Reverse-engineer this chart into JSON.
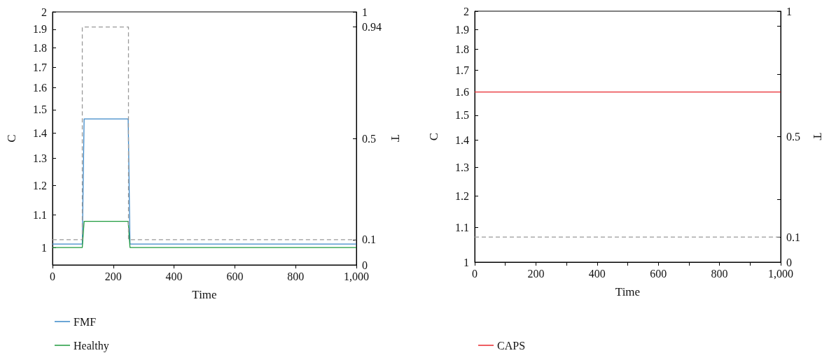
{
  "chart_data": [
    {
      "type": "line",
      "xlabel": "Time",
      "ylabel": "C",
      "y2label": "T",
      "legend": "bottom",
      "marker": "none",
      "grid": false,
      "log": "y",
      "xlim": [
        0,
        1000
      ],
      "xticks": [
        0,
        200,
        400,
        600,
        800,
        {
          "value": 1000,
          "label": "1,000"
        }
      ],
      "ylim": [
        0.95,
        2
      ],
      "yticks": [
        1,
        1.1,
        1.2,
        1.3,
        1.4,
        1.5,
        1.6,
        1.7,
        1.8,
        1.9,
        2
      ],
      "y2lim": [
        0,
        1
      ],
      "y2ticks": [
        0,
        0.1,
        0.5,
        0.94,
        1
      ],
      "series": [
        {
          "name": "FMF",
          "color": "#3a87c8",
          "line_style": "solid",
          "x": [
            0,
            98,
            104,
            249,
            255,
            1000
          ],
          "values": [
            1.01,
            1.01,
            1.46,
            1.46,
            1.01,
            1.01
          ]
        },
        {
          "name": "Healthy",
          "color": "#1f9a3e",
          "line_style": "solid",
          "x": [
            0,
            98,
            104,
            249,
            255,
            1000
          ],
          "values": [
            1.0,
            1.0,
            1.08,
            1.08,
            1.0,
            1.0
          ]
        },
        {
          "color": "#999999",
          "line_style": "dashed",
          "axis": "y2",
          "x": [
            0,
            98,
            98,
            250,
            250,
            1000
          ],
          "values": [
            0.1,
            0.1,
            0.94,
            0.94,
            0.1,
            0.1
          ]
        }
      ]
    },
    {
      "type": "line",
      "xlabel": "Time",
      "ylabel": "C",
      "y2label": "T",
      "legend": "bottom",
      "marker": "none",
      "grid": false,
      "log": "y",
      "xlim": [
        0,
        1000
      ],
      "xticks": [
        0,
        {
          "value": 100,
          "label": null
        },
        200,
        {
          "value": 300,
          "label": null
        },
        400,
        {
          "value": 500,
          "label": null
        },
        600,
        {
          "value": 700,
          "label": null
        },
        800,
        {
          "value": 900,
          "label": null
        },
        {
          "value": 1000,
          "label": "1,000"
        }
      ],
      "ylim": [
        1,
        2
      ],
      "yticks": [
        1,
        1.1,
        1.2,
        1.3,
        1.4,
        1.5,
        1.6,
        1.7,
        1.8,
        1.9,
        2
      ],
      "y2lim": [
        0,
        1
      ],
      "y2ticks": [
        0,
        0.1,
        {
          "value": 0.25,
          "label": null
        },
        0.5,
        {
          "value": 0.75,
          "label": null
        },
        {
          "value": 0.94,
          "label": null
        },
        1
      ],
      "series": [
        {
          "name": "CAPS",
          "color": "#e8282e",
          "line_style": "solid",
          "x": [
            0,
            1000
          ],
          "values": [
            1.6,
            1.6
          ]
        },
        {
          "color": "#999999",
          "line_style": "dashed",
          "axis": "y2",
          "x": [
            0,
            1000
          ],
          "values": [
            0.1,
            0.1
          ]
        }
      ]
    }
  ]
}
